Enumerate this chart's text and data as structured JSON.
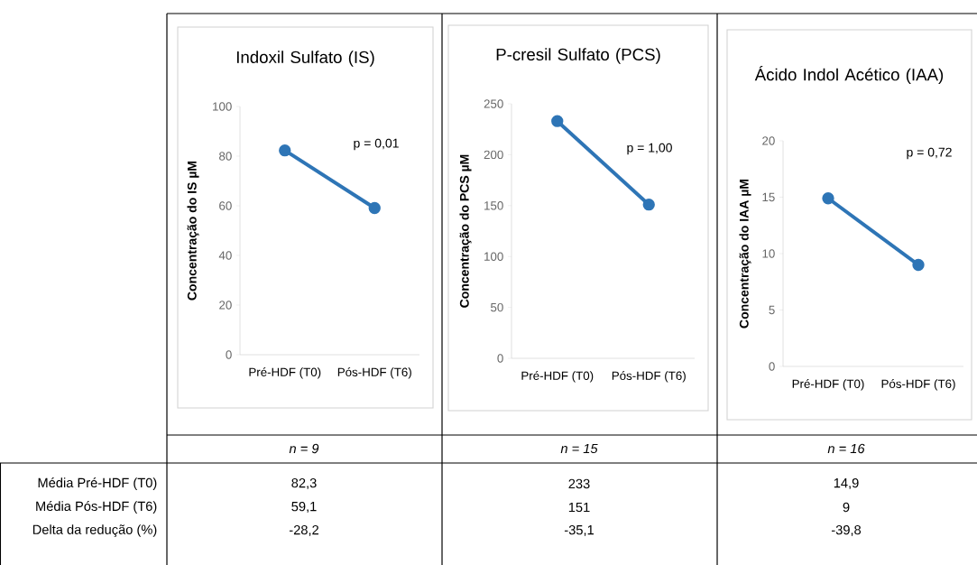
{
  "chart_data": [
    {
      "type": "line",
      "title": "Indoxil Sulfato (IS)",
      "ylabel": "Concentração do IS µM",
      "categories": [
        "Pré-HDF (T0)",
        "Pós-HDF (T6)"
      ],
      "values": [
        82.3,
        59.1
      ],
      "color": "#2e75b6",
      "marker": "circle",
      "ylim": [
        0,
        100
      ],
      "yticks": [
        0,
        20,
        40,
        60,
        80,
        100
      ],
      "grid": false,
      "legend": false,
      "annotations": [
        "p = 0,01",
        "n = 9",
        "82,3",
        "59,1",
        "-28,2",
        "Média Pré-HDF (T0)",
        "Média Pós-HDF (T6)",
        "Delta da redução (%)"
      ]
    },
    {
      "type": "line",
      "title": "P-cresil Sulfato (PCS)",
      "ylabel": "Concentração do PCS µM",
      "categories": [
        "Pré-HDF (T0)",
        "Pós-HDF (T6)"
      ],
      "values": [
        233,
        151
      ],
      "color": "#2e75b6",
      "marker": "circle",
      "ylim": [
        0,
        250
      ],
      "yticks": [
        0,
        50,
        100,
        150,
        200,
        250
      ],
      "grid": false,
      "legend": false,
      "annotations": [
        "p = 1,00",
        "n = 15",
        "233",
        "151",
        "-35,1"
      ]
    },
    {
      "type": "line",
      "title": "Ácido Indol Acético (IAA)",
      "ylabel": "Concentração do IAA µM",
      "categories": [
        "Pré-HDF (T0)",
        "Pós-HDF (T6)"
      ],
      "values": [
        14.9,
        9
      ],
      "color": "#2e75b6",
      "marker": "circle",
      "ylim": [
        0,
        20
      ],
      "yticks": [
        0,
        5,
        10,
        15,
        20
      ],
      "grid": false,
      "legend": false,
      "annotations": [
        "p = 0,72",
        "n = 16",
        "14,9",
        "9",
        "-39,8"
      ]
    }
  ]
}
